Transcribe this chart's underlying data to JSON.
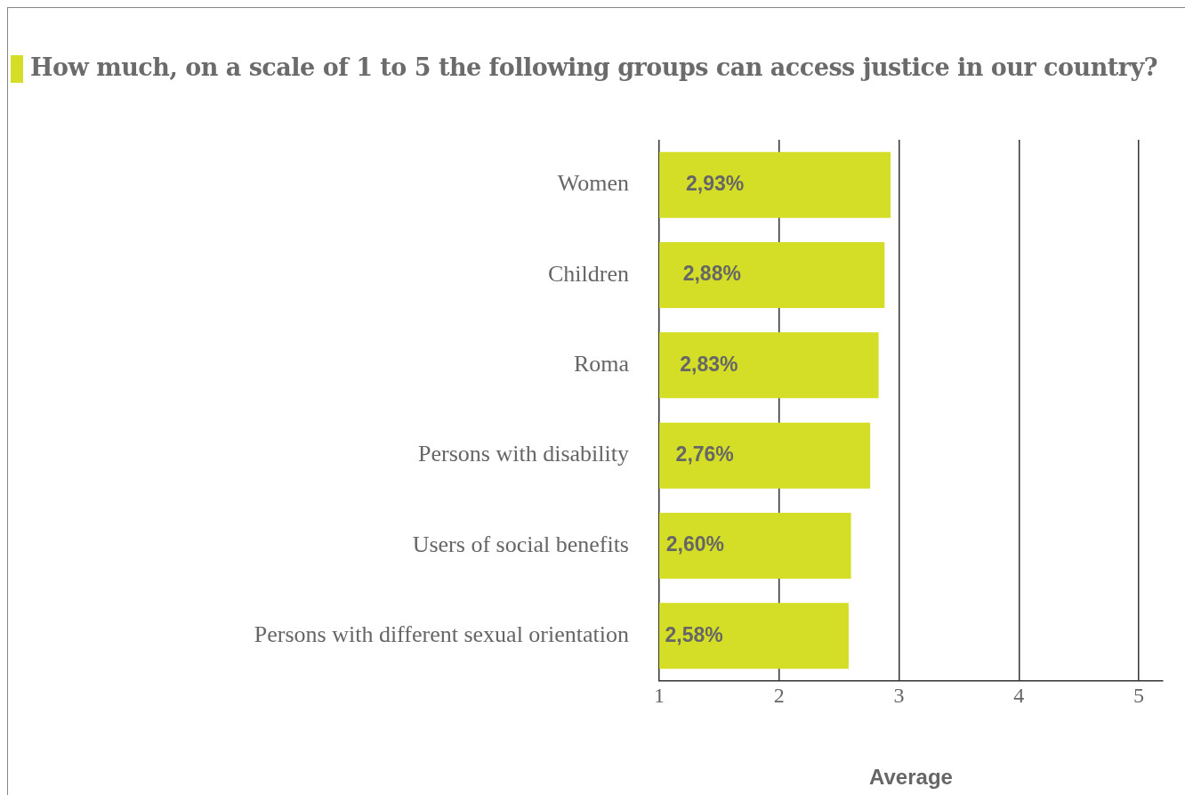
{
  "chart_data": {
    "type": "bar",
    "orientation": "horizontal",
    "title": "How much, on a scale of 1 to 5 the following groups can access justice in our country?",
    "xlabel": "Average",
    "categories": [
      "Women",
      "Children",
      "Roma",
      "Persons with disability",
      "Users of social benefits",
      "Persons with different sexual orientation"
    ],
    "values": [
      2.93,
      2.88,
      2.83,
      2.76,
      2.6,
      2.58
    ],
    "value_labels": [
      "2,93%",
      "2,88%",
      "2,83%",
      "2,76%",
      "2,60%",
      "2,58%"
    ],
    "color": "#d4de26",
    "xlim": [
      1,
      5.2
    ],
    "xticks": [
      1,
      2,
      3,
      4,
      5
    ],
    "grid": "x"
  }
}
